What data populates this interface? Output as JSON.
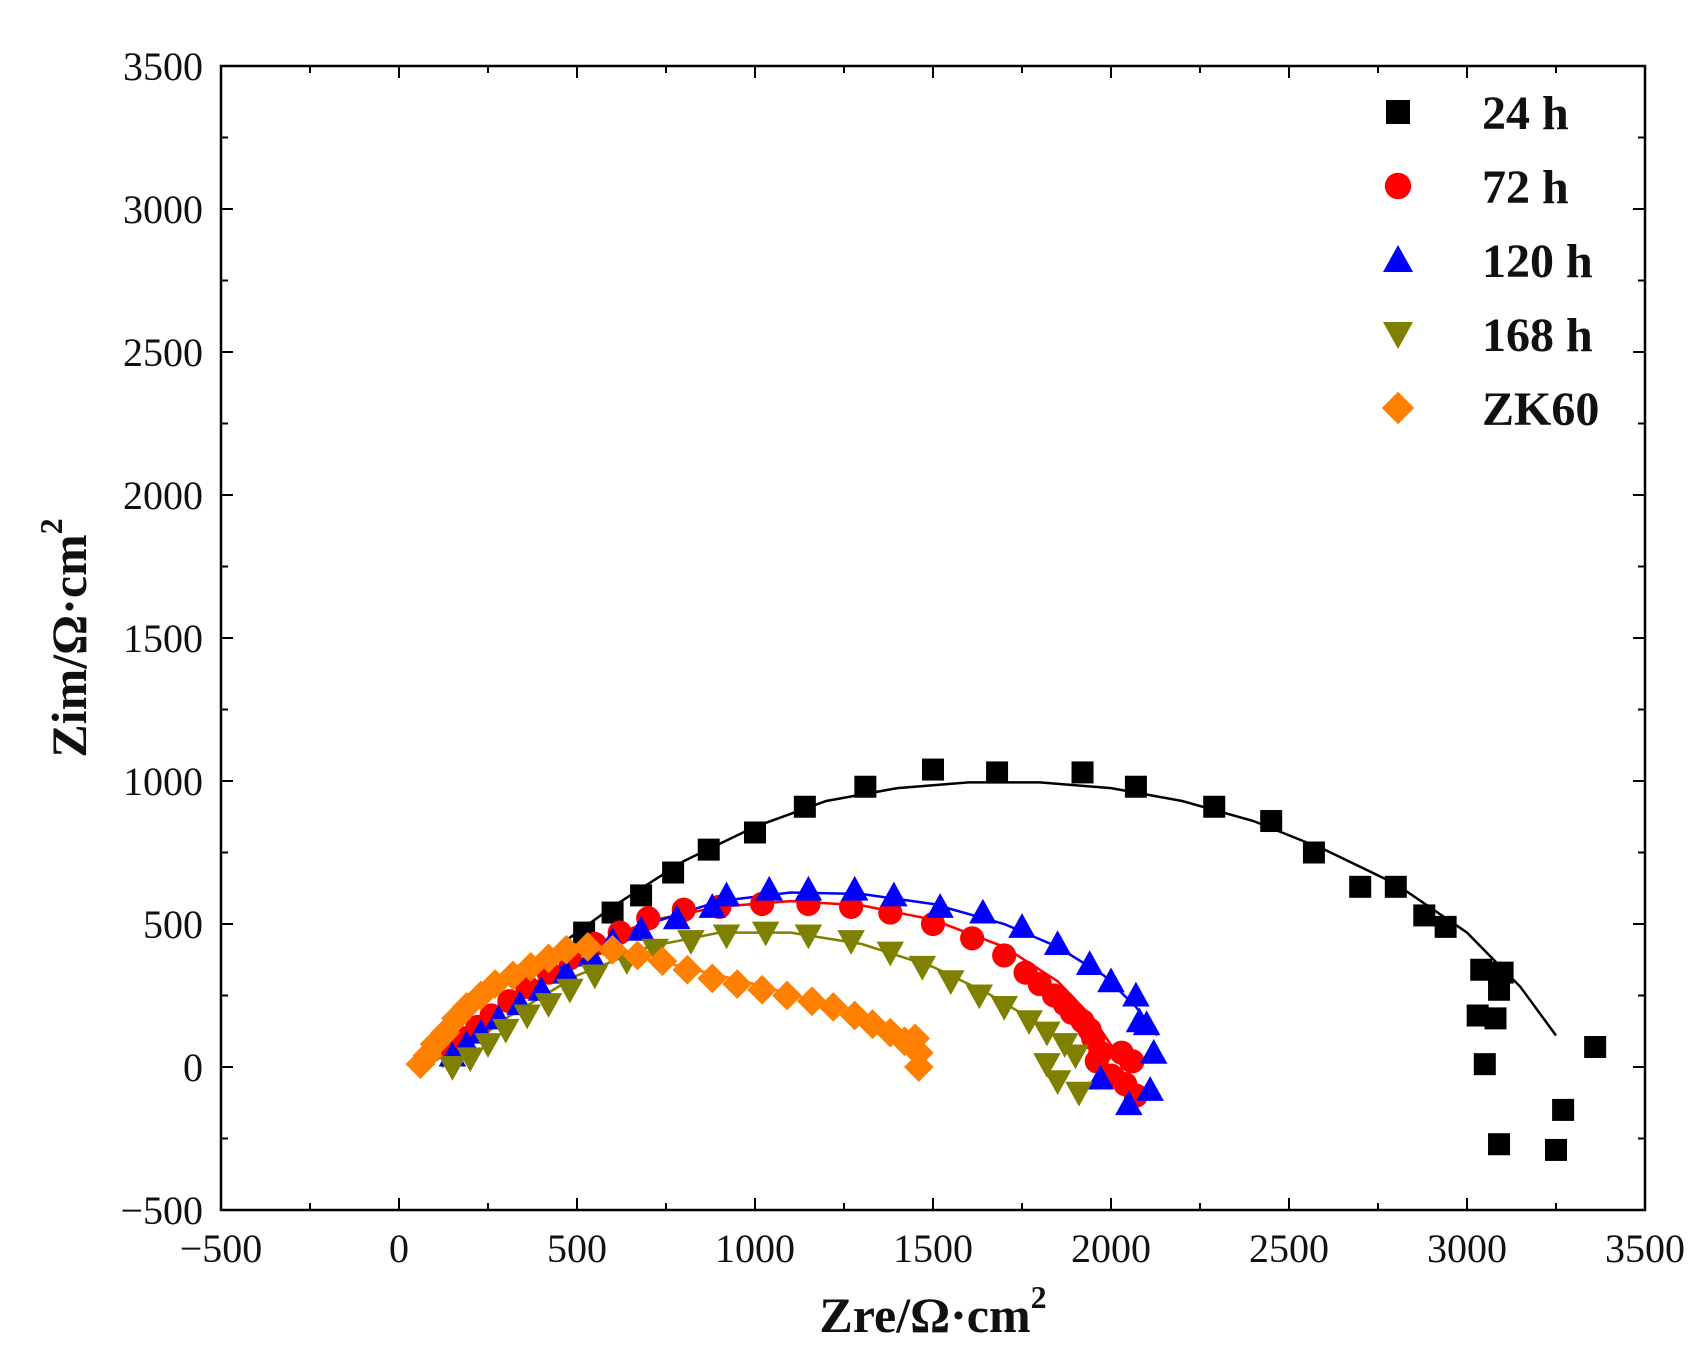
{
  "chart_data": {
    "type": "scatter",
    "title": "",
    "xlabel": "Zre/Ω·cm",
    "xlabel_sup": "2",
    "ylabel": "Zim/Ω·cm",
    "ylabel_sup": "2",
    "xlim": [
      -500,
      3500
    ],
    "ylim": [
      -500,
      3500
    ],
    "xticks": [
      -500,
      0,
      500,
      1000,
      1500,
      2000,
      2500,
      3000,
      3500
    ],
    "yticks": [
      -500,
      0,
      500,
      1000,
      1500,
      2000,
      2500,
      3000,
      3500
    ],
    "grid": false,
    "legend_position": "top-right",
    "series": [
      {
        "name": "24 h",
        "label": "24 h",
        "marker": "square",
        "color": "#000000",
        "points": [
          [
            520,
            470
          ],
          [
            600,
            540
          ],
          [
            680,
            600
          ],
          [
            770,
            680
          ],
          [
            870,
            760
          ],
          [
            1000,
            820
          ],
          [
            1140,
            910
          ],
          [
            1310,
            980
          ],
          [
            1500,
            1040
          ],
          [
            1680,
            1030
          ],
          [
            1920,
            1030
          ],
          [
            2070,
            980
          ],
          [
            2290,
            910
          ],
          [
            2450,
            860
          ],
          [
            2570,
            750
          ],
          [
            2700,
            630
          ],
          [
            2800,
            630
          ],
          [
            2880,
            530
          ],
          [
            2940,
            490
          ],
          [
            3040,
            340
          ],
          [
            3100,
            330
          ],
          [
            3090,
            270
          ],
          [
            3030,
            180
          ],
          [
            3080,
            170
          ],
          [
            3050,
            10
          ],
          [
            3360,
            70
          ],
          [
            3270,
            -150
          ],
          [
            3090,
            -270
          ],
          [
            3250,
            -290
          ]
        ],
        "fit": [
          [
            400,
            380
          ],
          [
            600,
            560
          ],
          [
            800,
            720
          ],
          [
            1000,
            840
          ],
          [
            1200,
            930
          ],
          [
            1400,
            975
          ],
          [
            1600,
            995
          ],
          [
            1800,
            995
          ],
          [
            2000,
            975
          ],
          [
            2200,
            930
          ],
          [
            2400,
            860
          ],
          [
            2600,
            760
          ],
          [
            2800,
            640
          ],
          [
            3000,
            470
          ],
          [
            3150,
            280
          ],
          [
            3250,
            110
          ]
        ]
      },
      {
        "name": "72 h",
        "label": "72 h",
        "marker": "circle",
        "color": "#ff0000",
        "points": [
          [
            150,
            60
          ],
          [
            180,
            100
          ],
          [
            220,
            140
          ],
          [
            260,
            180
          ],
          [
            310,
            230
          ],
          [
            360,
            280
          ],
          [
            420,
            330
          ],
          [
            480,
            380
          ],
          [
            550,
            430
          ],
          [
            620,
            470
          ],
          [
            700,
            520
          ],
          [
            800,
            550
          ],
          [
            900,
            560
          ],
          [
            1020,
            570
          ],
          [
            1150,
            570
          ],
          [
            1270,
            560
          ],
          [
            1380,
            540
          ],
          [
            1500,
            500
          ],
          [
            1610,
            450
          ],
          [
            1700,
            390
          ],
          [
            1760,
            330
          ],
          [
            1800,
            290
          ],
          [
            1840,
            250
          ],
          [
            1870,
            220
          ],
          [
            1890,
            190
          ],
          [
            1920,
            160
          ],
          [
            1940,
            130
          ],
          [
            1950,
            100
          ],
          [
            1970,
            50
          ],
          [
            1960,
            20
          ],
          [
            2000,
            -30
          ],
          [
            2040,
            -60
          ],
          [
            2070,
            -100
          ],
          [
            2060,
            20
          ],
          [
            2030,
            50
          ]
        ],
        "fit": [
          [
            100,
            20
          ],
          [
            300,
            220
          ],
          [
            500,
            400
          ],
          [
            700,
            510
          ],
          [
            900,
            560
          ],
          [
            1100,
            580
          ],
          [
            1300,
            565
          ],
          [
            1500,
            515
          ],
          [
            1700,
            420
          ],
          [
            1850,
            300
          ],
          [
            1950,
            170
          ],
          [
            2020,
            40
          ],
          [
            2050,
            -90
          ]
        ]
      },
      {
        "name": "120 h",
        "label": "120 h",
        "marker": "triangle-up",
        "color": "#0000ff",
        "points": [
          [
            150,
            40
          ],
          [
            190,
            80
          ],
          [
            230,
            120
          ],
          [
            280,
            170
          ],
          [
            340,
            220
          ],
          [
            400,
            270
          ],
          [
            470,
            330
          ],
          [
            540,
            390
          ],
          [
            600,
            440
          ],
          [
            680,
            480
          ],
          [
            780,
            520
          ],
          [
            880,
            560
          ],
          [
            920,
            600
          ],
          [
            1040,
            620
          ],
          [
            1150,
            620
          ],
          [
            1280,
            620
          ],
          [
            1390,
            600
          ],
          [
            1520,
            560
          ],
          [
            1640,
            540
          ],
          [
            1750,
            490
          ],
          [
            1850,
            430
          ],
          [
            1940,
            360
          ],
          [
            2000,
            300
          ],
          [
            2070,
            250
          ],
          [
            2080,
            160
          ],
          [
            2100,
            150
          ],
          [
            2120,
            50
          ],
          [
            2110,
            -80
          ],
          [
            2050,
            -130
          ],
          [
            1970,
            -40
          ]
        ],
        "fit": [
          [
            100,
            20
          ],
          [
            300,
            210
          ],
          [
            500,
            390
          ],
          [
            700,
            500
          ],
          [
            900,
            580
          ],
          [
            1100,
            610
          ],
          [
            1300,
            605
          ],
          [
            1500,
            570
          ],
          [
            1700,
            500
          ],
          [
            1850,
            420
          ],
          [
            1980,
            320
          ],
          [
            2070,
            210
          ],
          [
            2130,
            110
          ]
        ]
      },
      {
        "name": "168 h",
        "label": "168 h",
        "marker": "triangle-down",
        "color": "#808000",
        "points": [
          [
            150,
            0
          ],
          [
            200,
            30
          ],
          [
            250,
            80
          ],
          [
            300,
            130
          ],
          [
            360,
            180
          ],
          [
            420,
            220
          ],
          [
            480,
            270
          ],
          [
            550,
            320
          ],
          [
            640,
            370
          ],
          [
            720,
            410
          ],
          [
            820,
            440
          ],
          [
            920,
            460
          ],
          [
            1030,
            470
          ],
          [
            1150,
            460
          ],
          [
            1270,
            440
          ],
          [
            1380,
            400
          ],
          [
            1470,
            350
          ],
          [
            1550,
            300
          ],
          [
            1630,
            250
          ],
          [
            1700,
            210
          ],
          [
            1770,
            160
          ],
          [
            1820,
            120
          ],
          [
            1870,
            80
          ],
          [
            1900,
            40
          ],
          [
            1820,
            10
          ],
          [
            1850,
            -50
          ],
          [
            1910,
            -90
          ]
        ],
        "fit": [
          [
            120,
            0
          ],
          [
            300,
            170
          ],
          [
            500,
            320
          ],
          [
            700,
            420
          ],
          [
            900,
            470
          ],
          [
            1100,
            470
          ],
          [
            1300,
            430
          ],
          [
            1500,
            350
          ],
          [
            1650,
            260
          ],
          [
            1800,
            150
          ],
          [
            1900,
            50
          ]
        ]
      },
      {
        "name": "ZK60",
        "label": "ZK60",
        "marker": "diamond",
        "color": "#ff8000",
        "points": [
          [
            60,
            10
          ],
          [
            80,
            40
          ],
          [
            100,
            80
          ],
          [
            130,
            120
          ],
          [
            160,
            170
          ],
          [
            190,
            210
          ],
          [
            230,
            250
          ],
          [
            270,
            290
          ],
          [
            320,
            320
          ],
          [
            370,
            350
          ],
          [
            420,
            380
          ],
          [
            470,
            410
          ],
          [
            530,
            420
          ],
          [
            600,
            410
          ],
          [
            670,
            390
          ],
          [
            740,
            370
          ],
          [
            810,
            340
          ],
          [
            880,
            310
          ],
          [
            950,
            290
          ],
          [
            1020,
            270
          ],
          [
            1090,
            250
          ],
          [
            1160,
            230
          ],
          [
            1220,
            210
          ],
          [
            1280,
            180
          ],
          [
            1330,
            150
          ],
          [
            1380,
            120
          ],
          [
            1420,
            90
          ],
          [
            1450,
            100
          ],
          [
            1460,
            50
          ],
          [
            1460,
            0
          ]
        ],
        "fit": [
          [
            60,
            0
          ],
          [
            200,
            210
          ],
          [
            350,
            340
          ],
          [
            500,
            400
          ],
          [
            650,
            390
          ],
          [
            800,
            350
          ],
          [
            1000,
            290
          ],
          [
            1200,
            220
          ],
          [
            1350,
            140
          ],
          [
            1450,
            60
          ]
        ]
      }
    ]
  }
}
